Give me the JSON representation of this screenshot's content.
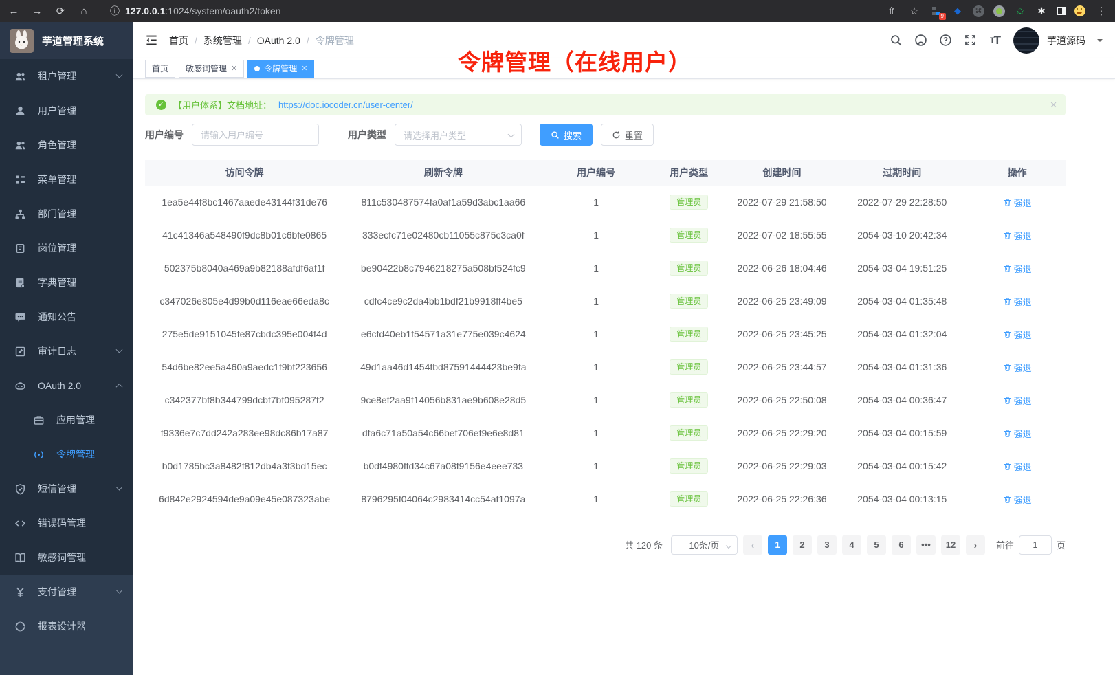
{
  "browser": {
    "url_host": "127.0.0.1",
    "url_rest": ":1024/system/oauth2/token",
    "ext_badge": "9"
  },
  "sidebar": {
    "title": "芋道管理系统",
    "items": [
      {
        "icon": "tenant-users-icon",
        "label": "租户管理",
        "chevron": "down"
      },
      {
        "icon": "user-icon",
        "label": "用户管理"
      },
      {
        "icon": "role-users-icon",
        "label": "角色管理"
      },
      {
        "icon": "menu-tree-icon",
        "label": "菜单管理"
      },
      {
        "icon": "dept-org-icon",
        "label": "部门管理"
      },
      {
        "icon": "post-badge-icon",
        "label": "岗位管理"
      },
      {
        "icon": "dict-book-icon",
        "label": "字典管理"
      },
      {
        "icon": "notice-chat-icon",
        "label": "通知公告"
      },
      {
        "icon": "audit-log-icon",
        "label": "审计日志",
        "chevron": "down"
      },
      {
        "icon": "oauth-robot-icon",
        "label": "OAuth 2.0",
        "chevron": "up"
      },
      {
        "icon": "app-briefcase-icon",
        "label": "应用管理",
        "indent": true
      },
      {
        "icon": "token-signal-icon",
        "label": "令牌管理",
        "indent": true,
        "active": true
      },
      {
        "icon": "sms-shield-icon",
        "label": "短信管理",
        "chevron": "down"
      },
      {
        "icon": "errcode-icon",
        "label": "错误码管理"
      },
      {
        "icon": "sensitive-book-icon",
        "label": "敏感词管理"
      },
      {
        "icon": "pay-yen-icon",
        "label": "支付管理",
        "chevron": "down",
        "section": "light"
      },
      {
        "icon": "report-designer-icon",
        "label": "报表设计器",
        "section": "light"
      }
    ]
  },
  "topbar": {
    "breadcrumb": [
      "首页",
      "系统管理",
      "OAuth 2.0",
      "令牌管理"
    ],
    "username": "芋道源码"
  },
  "tabs": [
    {
      "label": "首页",
      "closable": false,
      "active": false
    },
    {
      "label": "敏感词管理",
      "closable": true,
      "active": false
    },
    {
      "label": "令牌管理",
      "closable": true,
      "active": true
    }
  ],
  "annotation": "令牌管理（在线用户）",
  "alert": {
    "text": "【用户体系】文档地址：",
    "link": "https://doc.iocoder.cn/user-center/"
  },
  "filters": {
    "user_id_label": "用户编号",
    "user_id_placeholder": "请输入用户编号",
    "user_type_label": "用户类型",
    "user_type_placeholder": "请选择用户类型",
    "search_label": "搜索",
    "reset_label": "重置"
  },
  "table": {
    "columns": [
      "访问令牌",
      "刷新令牌",
      "用户编号",
      "用户类型",
      "创建时间",
      "过期时间",
      "操作"
    ],
    "action_label": "强退",
    "rows": [
      {
        "access": "1ea5e44f8bc1467aaede43144f31de76",
        "refresh": "811c530487574fa0af1a59d3abc1aa66",
        "user_id": "1",
        "user_type": "管理员",
        "created": "2022-07-29 21:58:50",
        "expires": "2022-07-29 22:28:50"
      },
      {
        "access": "41c41346a548490f9dc8b01c6bfe0865",
        "refresh": "333ecfc71e02480cb11055c875c3ca0f",
        "user_id": "1",
        "user_type": "管理员",
        "created": "2022-07-02 18:55:55",
        "expires": "2054-03-10 20:42:34"
      },
      {
        "access": "502375b8040a469a9b82188afdf6af1f",
        "refresh": "be90422b8c7946218275a508bf524fc9",
        "user_id": "1",
        "user_type": "管理员",
        "created": "2022-06-26 18:04:46",
        "expires": "2054-03-04 19:51:25"
      },
      {
        "access": "c347026e805e4d99b0d116eae66eda8c",
        "refresh": "cdfc4ce9c2da4bb1bdf21b9918ff4be5",
        "user_id": "1",
        "user_type": "管理员",
        "created": "2022-06-25 23:49:09",
        "expires": "2054-03-04 01:35:48"
      },
      {
        "access": "275e5de9151045fe87cbdc395e004f4d",
        "refresh": "e6cfd40eb1f54571a31e775e039c4624",
        "user_id": "1",
        "user_type": "管理员",
        "created": "2022-06-25 23:45:25",
        "expires": "2054-03-04 01:32:04"
      },
      {
        "access": "54d6be82ee5a460a9aedc1f9bf223656",
        "refresh": "49d1aa46d1454fbd87591444423be9fa",
        "user_id": "1",
        "user_type": "管理员",
        "created": "2022-06-25 23:44:57",
        "expires": "2054-03-04 01:31:36"
      },
      {
        "access": "c342377bf8b344799dcbf7bf095287f2",
        "refresh": "9ce8ef2aa9f14056b831ae9b608e28d5",
        "user_id": "1",
        "user_type": "管理员",
        "created": "2022-06-25 22:50:08",
        "expires": "2054-03-04 00:36:47"
      },
      {
        "access": "f9336e7c7dd242a283ee98dc86b17a87",
        "refresh": "dfa6c71a50a54c66bef706ef9e6e8d81",
        "user_id": "1",
        "user_type": "管理员",
        "created": "2022-06-25 22:29:20",
        "expires": "2054-03-04 00:15:59"
      },
      {
        "access": "b0d1785bc3a8482f812db4a3f3bd15ec",
        "refresh": "b0df4980ffd34c67a08f9156e4eee733",
        "user_id": "1",
        "user_type": "管理员",
        "created": "2022-06-25 22:29:03",
        "expires": "2054-03-04 00:15:42"
      },
      {
        "access": "6d842e2924594de9a09e45e087323abe",
        "refresh": "8796295f04064c2983414cc54af1097a",
        "user_id": "1",
        "user_type": "管理员",
        "created": "2022-06-25 22:26:36",
        "expires": "2054-03-04 00:13:15"
      }
    ]
  },
  "pagination": {
    "total_label": "共 120 条",
    "page_size_label": "10条/页",
    "pages": [
      "1",
      "2",
      "3",
      "4",
      "5",
      "6",
      "•••",
      "12"
    ],
    "active_page": "1",
    "prev_icon": "‹",
    "next_icon": "›",
    "jump_prefix": "前往",
    "jump_value": "1",
    "jump_suffix": "页"
  },
  "colors": {
    "primary_blue": "#409eff",
    "success_green": "#67c23a",
    "annotation_red": "#f8230c",
    "sidebar_bg": "#2e3d50",
    "sidebar_dark_bg": "#222e3d"
  }
}
